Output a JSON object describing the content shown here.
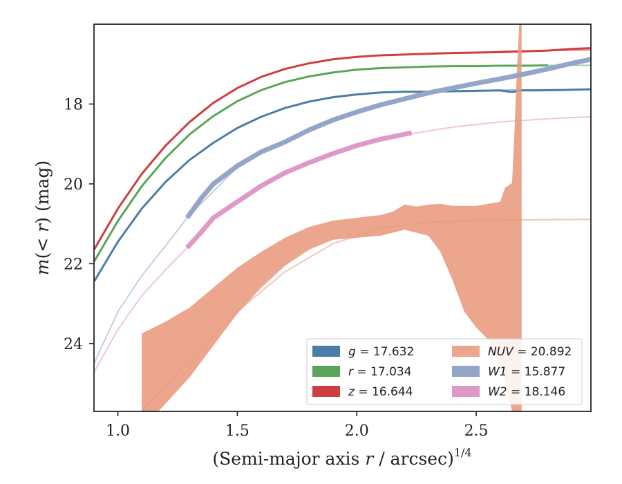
{
  "chart_data": {
    "type": "line",
    "title": "",
    "xlabel": "(Semi-major axis r / arcsec)",
    "xlabel_parts": {
      "pre": "(Semi-major axis ",
      "var": "r",
      "post": " / arcsec)",
      "sup": "1/4"
    },
    "ylabel": "m(< r) (mag)",
    "ylabel_parts": {
      "m": "m",
      "open": "(",
      "lt": "< ",
      "r": "r",
      "close": ")",
      "unit": " (mag)"
    },
    "xlim": [
      0.9,
      2.98
    ],
    "ylim": [
      25.7,
      16.0
    ],
    "y_inverted": true,
    "xticks": [
      1.0,
      1.5,
      2.0,
      2.5
    ],
    "xtick_labels": [
      "1.0",
      "1.5",
      "2.0",
      "2.5"
    ],
    "yticks": [
      18,
      20,
      22,
      24
    ],
    "ytick_labels": [
      "18",
      "20",
      "22",
      "24"
    ],
    "grid": false,
    "legend_position": "lower-right",
    "legend_columns": 2,
    "series": [
      {
        "name": "g = 17.632",
        "legend": {
          "var": "g",
          "rest": " = 17.632"
        },
        "color": "#4c7ca8",
        "kind": "line",
        "points": [
          [
            0.9,
            22.45
          ],
          [
            1.0,
            21.45
          ],
          [
            1.1,
            20.62
          ],
          [
            1.2,
            19.95
          ],
          [
            1.3,
            19.4
          ],
          [
            1.4,
            18.97
          ],
          [
            1.5,
            18.6
          ],
          [
            1.6,
            18.32
          ],
          [
            1.7,
            18.1
          ],
          [
            1.8,
            17.94
          ],
          [
            1.9,
            17.83
          ],
          [
            2.0,
            17.76
          ],
          [
            2.1,
            17.71
          ],
          [
            2.2,
            17.69
          ],
          [
            2.3,
            17.69
          ],
          [
            2.4,
            17.68
          ],
          [
            2.5,
            17.67
          ],
          [
            2.6,
            17.66
          ],
          [
            2.65,
            17.7
          ],
          [
            2.69,
            17.66
          ],
          [
            2.75,
            17.66
          ],
          [
            2.85,
            17.65
          ],
          [
            2.98,
            17.63
          ]
        ],
        "extension": [
          [
            2.2,
            17.7
          ],
          [
            2.4,
            17.67
          ],
          [
            2.6,
            17.65
          ],
          [
            2.8,
            17.64
          ],
          [
            2.98,
            17.63
          ]
        ]
      },
      {
        "name": "r = 17.034",
        "legend": {
          "var": "r",
          "rest": " = 17.034"
        },
        "color": "#5aa55a",
        "kind": "line",
        "points": [
          [
            0.9,
            21.95
          ],
          [
            1.0,
            20.93
          ],
          [
            1.1,
            20.06
          ],
          [
            1.2,
            19.35
          ],
          [
            1.3,
            18.76
          ],
          [
            1.4,
            18.3
          ],
          [
            1.5,
            17.93
          ],
          [
            1.6,
            17.65
          ],
          [
            1.7,
            17.45
          ],
          [
            1.8,
            17.31
          ],
          [
            1.9,
            17.21
          ],
          [
            2.0,
            17.14
          ],
          [
            2.1,
            17.1
          ],
          [
            2.2,
            17.08
          ],
          [
            2.3,
            17.06
          ],
          [
            2.4,
            17.05
          ],
          [
            2.5,
            17.05
          ],
          [
            2.6,
            17.04
          ],
          [
            2.7,
            17.04
          ],
          [
            2.8,
            17.03
          ]
        ],
        "extension": [
          [
            2.6,
            17.04
          ],
          [
            2.8,
            17.03
          ],
          [
            2.98,
            17.03
          ]
        ]
      },
      {
        "name": "z = 16.644",
        "legend": {
          "var": "z",
          "rest": " = 16.644"
        },
        "color": "#cf3e3e",
        "kind": "line",
        "points": [
          [
            0.9,
            21.65
          ],
          [
            1.0,
            20.62
          ],
          [
            1.1,
            19.75
          ],
          [
            1.2,
            19.04
          ],
          [
            1.3,
            18.45
          ],
          [
            1.4,
            17.97
          ],
          [
            1.5,
            17.6
          ],
          [
            1.6,
            17.32
          ],
          [
            1.7,
            17.12
          ],
          [
            1.8,
            16.98
          ],
          [
            1.9,
            16.88
          ],
          [
            2.0,
            16.82
          ],
          [
            2.1,
            16.78
          ],
          [
            2.2,
            16.76
          ],
          [
            2.3,
            16.74
          ],
          [
            2.4,
            16.72
          ],
          [
            2.5,
            16.71
          ],
          [
            2.6,
            16.7
          ],
          [
            2.7,
            16.68
          ],
          [
            2.8,
            16.66
          ],
          [
            2.9,
            16.62
          ],
          [
            2.98,
            16.6
          ]
        ],
        "extension": [
          [
            2.6,
            16.68
          ],
          [
            2.8,
            16.66
          ],
          [
            2.98,
            16.65
          ]
        ]
      },
      {
        "name": "NUV = 20.892",
        "legend": {
          "var": "NUV",
          "rest": " = 20.892"
        },
        "color": "#e9967a",
        "kind": "band",
        "upper": [
          [
            1.1,
            23.75
          ],
          [
            1.2,
            23.45
          ],
          [
            1.3,
            23.1
          ],
          [
            1.4,
            22.6
          ],
          [
            1.5,
            22.1
          ],
          [
            1.6,
            21.7
          ],
          [
            1.7,
            21.35
          ],
          [
            1.8,
            21.08
          ],
          [
            1.9,
            20.92
          ],
          [
            2.0,
            20.85
          ],
          [
            2.1,
            20.78
          ],
          [
            2.15,
            20.7
          ],
          [
            2.2,
            20.52
          ],
          [
            2.25,
            20.57
          ],
          [
            2.3,
            20.52
          ],
          [
            2.35,
            20.5
          ],
          [
            2.4,
            20.55
          ],
          [
            2.5,
            20.55
          ],
          [
            2.6,
            20.45
          ],
          [
            2.62,
            20.1
          ],
          [
            2.65,
            19.98
          ],
          [
            2.66,
            18.7
          ],
          [
            2.67,
            17.2
          ],
          [
            2.68,
            16.0
          ]
        ],
        "lower": [
          [
            2.69,
            16.0
          ],
          [
            2.69,
            25.7
          ],
          [
            2.65,
            25.7
          ],
          [
            2.62,
            24.9
          ],
          [
            2.58,
            24.3
          ],
          [
            2.55,
            23.9
          ],
          [
            2.5,
            23.6
          ],
          [
            2.45,
            23.2
          ],
          [
            2.4,
            22.4
          ],
          [
            2.35,
            21.7
          ],
          [
            2.3,
            21.3
          ],
          [
            2.2,
            21.15
          ],
          [
            2.1,
            21.3
          ],
          [
            2.0,
            21.35
          ],
          [
            1.9,
            21.4
          ],
          [
            1.8,
            21.65
          ],
          [
            1.7,
            22.05
          ],
          [
            1.6,
            22.6
          ],
          [
            1.5,
            23.25
          ],
          [
            1.4,
            24.05
          ],
          [
            1.3,
            24.85
          ],
          [
            1.2,
            25.5
          ],
          [
            1.17,
            25.7
          ],
          [
            1.1,
            25.7
          ]
        ],
        "extension": [
          [
            0.9,
            27.0
          ],
          [
            1.1,
            25.7
          ],
          [
            1.3,
            24.4
          ],
          [
            1.5,
            23.2
          ],
          [
            1.7,
            22.2
          ],
          [
            1.9,
            21.5
          ],
          [
            2.1,
            21.1
          ],
          [
            2.3,
            20.96
          ],
          [
            2.5,
            20.92
          ],
          [
            2.7,
            20.9
          ],
          [
            2.98,
            20.89
          ]
        ]
      },
      {
        "name": "W1 = 15.877",
        "legend": {
          "var": "W1",
          "rest": " = 15.877"
        },
        "color": "#93a6c8",
        "kind": "thickline",
        "points": [
          [
            1.29,
            20.85
          ],
          [
            1.35,
            20.35
          ],
          [
            1.4,
            20.0
          ],
          [
            1.5,
            19.55
          ],
          [
            1.6,
            19.2
          ],
          [
            1.7,
            18.95
          ],
          [
            1.8,
            18.65
          ],
          [
            1.9,
            18.4
          ],
          [
            2.0,
            18.2
          ],
          [
            2.1,
            18.02
          ],
          [
            2.2,
            17.87
          ],
          [
            2.3,
            17.72
          ],
          [
            2.4,
            17.6
          ],
          [
            2.5,
            17.48
          ],
          [
            2.6,
            17.37
          ],
          [
            2.7,
            17.25
          ],
          [
            2.8,
            17.12
          ],
          [
            2.9,
            16.98
          ],
          [
            2.98,
            16.88
          ]
        ],
        "extension": [
          [
            0.9,
            24.5
          ],
          [
            1.0,
            23.2
          ],
          [
            1.1,
            22.3
          ],
          [
            1.2,
            21.55
          ],
          [
            1.29,
            20.85
          ],
          [
            1.5,
            19.58
          ]
        ]
      },
      {
        "name": "W2 = 18.146",
        "legend": {
          "var": "W2",
          "rest": " = 18.146"
        },
        "color": "#de99c8",
        "kind": "thickline",
        "points": [
          [
            1.29,
            21.6
          ],
          [
            1.35,
            21.2
          ],
          [
            1.4,
            20.85
          ],
          [
            1.5,
            20.45
          ],
          [
            1.6,
            20.05
          ],
          [
            1.7,
            19.72
          ],
          [
            1.8,
            19.47
          ],
          [
            1.9,
            19.24
          ],
          [
            2.0,
            19.04
          ],
          [
            2.1,
            18.88
          ],
          [
            2.23,
            18.72
          ]
        ],
        "extension": [
          [
            0.9,
            24.72
          ],
          [
            1.0,
            23.65
          ],
          [
            1.1,
            22.8
          ],
          [
            1.2,
            22.15
          ],
          [
            1.29,
            21.6
          ],
          [
            1.4,
            20.9
          ],
          [
            1.6,
            20.05
          ],
          [
            1.8,
            19.48
          ],
          [
            2.0,
            19.05
          ],
          [
            2.2,
            18.77
          ],
          [
            2.4,
            18.58
          ],
          [
            2.6,
            18.45
          ],
          [
            2.8,
            18.37
          ],
          [
            2.98,
            18.32
          ]
        ]
      }
    ]
  }
}
